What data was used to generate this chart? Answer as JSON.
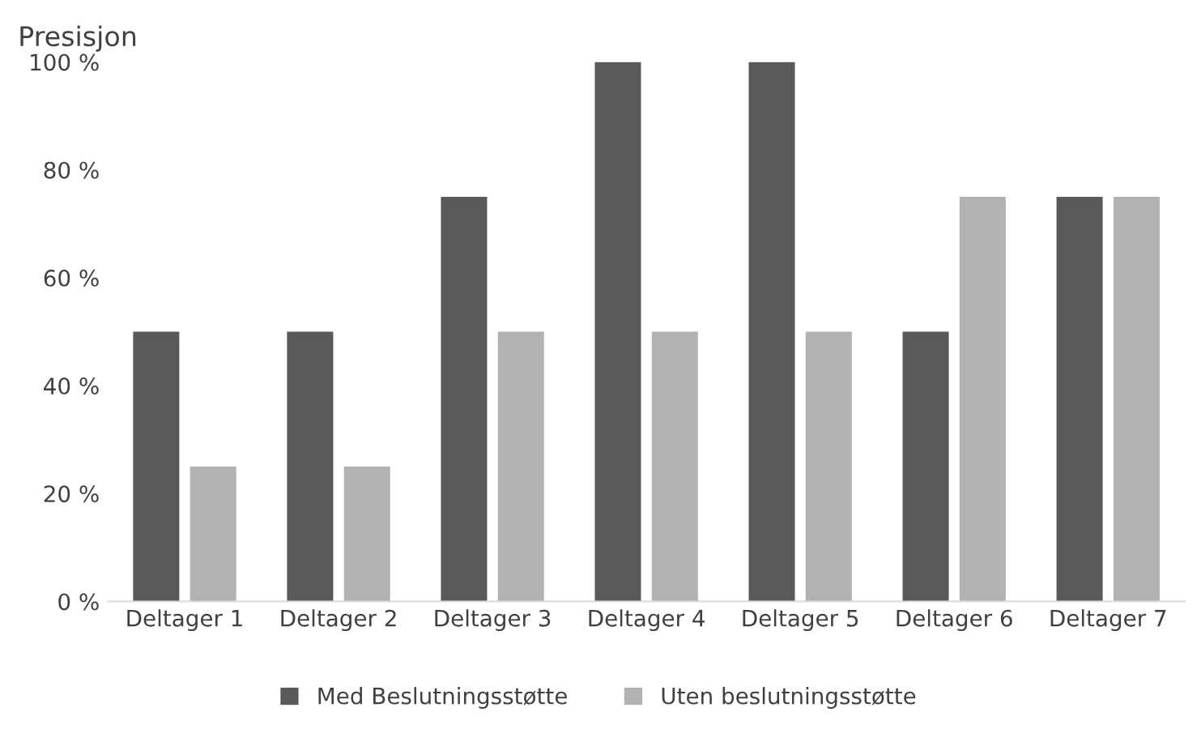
{
  "chart_data": {
    "type": "bar",
    "title": "Presisjon",
    "categories": [
      "Deltager 1",
      "Deltager 2",
      "Deltager 3",
      "Deltager 4",
      "Deltager 5",
      "Deltager 6",
      "Deltager 7"
    ],
    "series": [
      {
        "name": "Med Beslutningsstøtte",
        "color": "#595959",
        "values": [
          50,
          50,
          75,
          100,
          100,
          50,
          75
        ]
      },
      {
        "name": "Uten beslutningsstøtte",
        "color": "#b2b2b2",
        "values": [
          25,
          25,
          50,
          50,
          50,
          75,
          75
        ]
      }
    ],
    "ylim": [
      0,
      100
    ],
    "yticks": [
      {
        "value": 0,
        "label": "0 %"
      },
      {
        "value": 20,
        "label": "20 %"
      },
      {
        "value": 40,
        "label": "40 %"
      },
      {
        "value": 60,
        "label": "60 %"
      },
      {
        "value": 80,
        "label": "80 %"
      },
      {
        "value": 100,
        "label": "100 %"
      }
    ],
    "grid": false,
    "legend": "bottom"
  }
}
